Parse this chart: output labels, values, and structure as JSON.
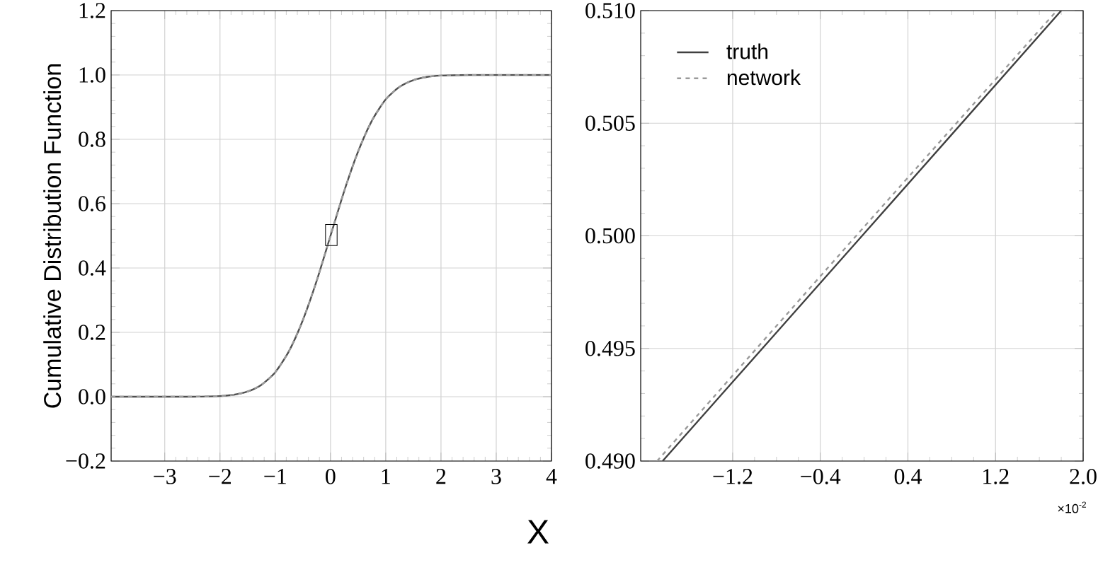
{
  "chart_data": [
    {
      "type": "line",
      "ylabel": "Cumulative Distribution Function",
      "xlabel": "X",
      "xlim": [
        -3.97,
        4
      ],
      "ylim": [
        -0.2,
        1.2
      ],
      "xticks": [
        {
          "value": -3,
          "label": "−3"
        },
        {
          "value": -2,
          "label": "−2"
        },
        {
          "value": -1,
          "label": "−1"
        },
        0,
        1,
        2,
        3,
        4
      ],
      "yticks": [
        {
          "value": -0.2,
          "label": "−0.2"
        },
        {
          "value": 0,
          "label": "0.0"
        },
        0.2,
        0.4,
        0.6,
        0.8,
        {
          "value": 1,
          "label": "1.0"
        },
        1.2
      ],
      "grid": true,
      "legend": false,
      "series": [
        {
          "color": "#505050",
          "line_style": "solid",
          "x": [
            -3.97,
            -3,
            -2.5,
            -2,
            -1.75,
            -1.5,
            -1.25,
            -1,
            -0.75,
            -0.5,
            -0.25,
            0,
            0.25,
            0.5,
            0.75,
            1,
            1.25,
            1.5,
            1.75,
            2,
            2.5,
            3,
            4
          ],
          "values": [
            0,
            0,
            0,
            0.002,
            0.006,
            0.016,
            0.037,
            0.076,
            0.142,
            0.238,
            0.36,
            0.5,
            0.64,
            0.762,
            0.858,
            0.924,
            0.963,
            0.984,
            0.994,
            0.998,
            1,
            1,
            1
          ]
        },
        {
          "color": "#9a9a9a",
          "line_style": "dashed",
          "x": [
            -3.97,
            -3,
            -2.5,
            -2,
            -1.75,
            -1.5,
            -1.25,
            -1,
            -0.75,
            -0.5,
            -0.25,
            0,
            0.25,
            0.5,
            0.75,
            1,
            1.25,
            1.5,
            1.75,
            2,
            2.5,
            3,
            4
          ],
          "values": [
            0,
            0,
            0,
            0.002,
            0.006,
            0.016,
            0.037,
            0.076,
            0.142,
            0.238,
            0.36,
            0.5,
            0.64,
            0.762,
            0.858,
            0.924,
            0.963,
            0.984,
            0.994,
            0.998,
            1,
            1,
            1
          ]
        }
      ]
    },
    {
      "type": "line",
      "xlim": [
        -2.04,
        2.0
      ],
      "ylim": [
        0.49,
        0.51
      ],
      "xticks": [
        {
          "value": -1.2,
          "label": "−1.2"
        },
        {
          "value": -0.4,
          "label": "−0.4"
        },
        0.4,
        1.2,
        {
          "value": 2,
          "label": "2.0"
        }
      ],
      "yticks": [
        {
          "value": 0.49,
          "label": "0.490"
        },
        0.495,
        {
          "value": 0.5,
          "label": "0.500"
        },
        0.505,
        {
          "value": 0.51,
          "label": "0.510"
        }
      ],
      "grid": true,
      "legend": "top left",
      "annotations": [
        "×10$^{-2}$"
      ],
      "series": [
        {
          "name": "truth",
          "color": "#404040",
          "line_style": "solid",
          "x": [
            -1.84,
            0,
            1.8
          ],
          "values": [
            0.49,
            0.5001,
            0.51
          ]
        },
        {
          "name": "network",
          "color": "#9a9a9a",
          "line_style": "dashed",
          "x": [
            -1.89,
            0,
            1.76
          ],
          "values": [
            0.49,
            0.5004,
            0.51
          ]
        }
      ]
    }
  ]
}
